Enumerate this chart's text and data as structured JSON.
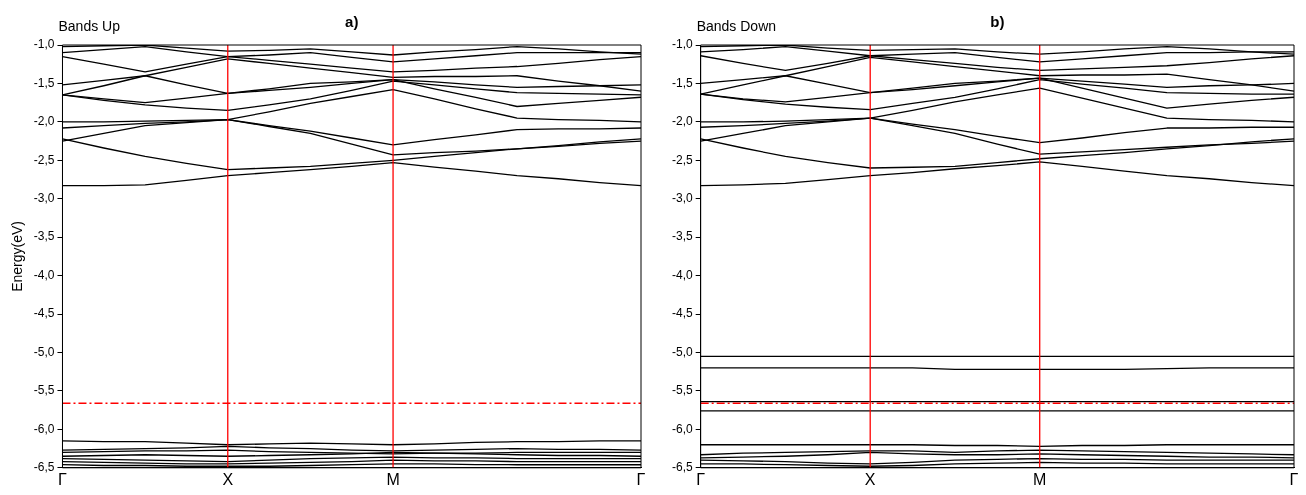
{
  "chart_data": [
    {
      "type": "line",
      "title": "a)",
      "subtitle": "Bands Up",
      "ylabel": "Energy(eV)",
      "categories": [
        "Γ",
        null,
        null,
        null,
        "Χ",
        null,
        null,
        null,
        "M",
        null,
        null,
        null,
        null,
        null,
        "Γ"
      ],
      "ylim": [
        -6.5,
        -1
      ],
      "yticks": [
        {
          "value": -6.5,
          "label": "-6,5"
        },
        {
          "value": -6,
          "label": "-6,0"
        },
        {
          "value": -5.5,
          "label": "-5,5"
        },
        {
          "value": -5,
          "label": "-5,0"
        },
        {
          "value": -4.5,
          "label": "-4,5"
        },
        {
          "value": -4,
          "label": "-4,0"
        },
        {
          "value": -3.5,
          "label": "-3,5"
        },
        {
          "value": -3,
          "label": "-3,0"
        },
        {
          "value": -2.5,
          "label": "-2,5"
        },
        {
          "value": -2,
          "label": "-2,0"
        },
        {
          "value": -1.5,
          "label": "-1,5"
        },
        {
          "value": -1,
          "label": "-1,0"
        }
      ],
      "ref_lines": [
        {
          "axis": "x",
          "value": "Χ",
          "color": "#ff0000",
          "line_style": "solid"
        },
        {
          "axis": "x",
          "value": "M",
          "color": "#ff0000",
          "line_style": "solid"
        },
        {
          "axis": "y",
          "value": -5.66,
          "color": "#ff0000",
          "line_style": "dashed"
        }
      ],
      "series": [
        {
          "color": "#000000",
          "values": [
            -2.83,
            -2.83,
            -2.82,
            -2.76,
            -2.7,
            -2.66,
            -2.62,
            -2.58,
            -2.53,
            -2.59,
            -2.64,
            -2.7,
            -2.74,
            -2.79,
            -2.83
          ]
        },
        {
          "color": "#000000",
          "values": [
            -2.22,
            -2.34,
            -2.45,
            -2.54,
            -2.62,
            -2.6,
            -2.58,
            -2.54,
            -2.5,
            -2.45,
            -2.4,
            -2.35,
            -2.31,
            -2.26,
            -2.22
          ]
        },
        {
          "color": "#000000",
          "values": [
            -2.25,
            -2.15,
            -2.05,
            -2.01,
            -1.97,
            -2.06,
            -2.15,
            -2.29,
            -2.43,
            -2.4,
            -2.38,
            -2.35,
            -2.32,
            -2.28,
            -2.25
          ]
        },
        {
          "color": "#000000",
          "values": [
            -2.08,
            -2.05,
            -2.02,
            -2.0,
            -1.97,
            -2.05,
            -2.12,
            -2.21,
            -2.3,
            -2.23,
            -2.17,
            -2.1,
            -2.09,
            -2.09,
            -2.08
          ]
        },
        {
          "color": "#000000",
          "values": [
            -2.0,
            -2.0,
            -1.99,
            -1.98,
            -1.97,
            -1.87,
            -1.76,
            -1.67,
            -1.58,
            -1.7,
            -1.83,
            -1.95,
            -1.97,
            -1.98,
            -2.0
          ]
        },
        {
          "color": "#000000",
          "values": [
            -1.65,
            -1.72,
            -1.78,
            -1.82,
            -1.85,
            -1.78,
            -1.7,
            -1.59,
            -1.47,
            -1.52,
            -1.57,
            -1.62,
            -1.63,
            -1.64,
            -1.65
          ]
        },
        {
          "color": "#000000",
          "values": [
            -1.65,
            -1.7,
            -1.75,
            -1.69,
            -1.63,
            -1.59,
            -1.55,
            -1.5,
            -1.45,
            -1.57,
            -1.68,
            -1.8,
            -1.76,
            -1.72,
            -1.68
          ]
        },
        {
          "color": "#000000",
          "values": [
            -1.52,
            -1.46,
            -1.4,
            -1.52,
            -1.63,
            -1.57,
            -1.5,
            -1.48,
            -1.45,
            -1.48,
            -1.52,
            -1.55,
            -1.54,
            -1.53,
            -1.52
          ]
        },
        {
          "color": "#000000",
          "values": [
            -1.65,
            -1.53,
            -1.4,
            -1.29,
            -1.18,
            -1.24,
            -1.3,
            -1.36,
            -1.42,
            -1.41,
            -1.41,
            -1.4,
            -1.47,
            -1.53,
            -1.6
          ]
        },
        {
          "color": "#000000",
          "values": [
            -1.15,
            -1.25,
            -1.35,
            -1.25,
            -1.15,
            -1.2,
            -1.25,
            -1.3,
            -1.35,
            -1.33,
            -1.3,
            -1.28,
            -1.24,
            -1.19,
            -1.15
          ]
        },
        {
          "color": "#000000",
          "values": [
            -1.1,
            -1.06,
            -1.02,
            -1.09,
            -1.15,
            -1.13,
            -1.1,
            -1.16,
            -1.22,
            -1.18,
            -1.14,
            -1.1,
            -1.1,
            -1.1,
            -1.1
          ]
        },
        {
          "color": "#000000",
          "values": [
            -1.02,
            -1.01,
            -1.0,
            -1.04,
            -1.08,
            -1.07,
            -1.05,
            -1.09,
            -1.13,
            -1.09,
            -1.06,
            -1.02,
            -1.05,
            -1.09,
            -1.12
          ]
        },
        {
          "color": "#000000",
          "values": [
            -6.15,
            -6.16,
            -6.16,
            -6.18,
            -6.2,
            -6.19,
            -6.18,
            -6.19,
            -6.2,
            -6.19,
            -6.17,
            -6.16,
            -6.16,
            -6.15,
            -6.15
          ]
        },
        {
          "color": "#000000",
          "values": [
            -6.27,
            -6.26,
            -6.25,
            -6.24,
            -6.22,
            -6.24,
            -6.25,
            -6.27,
            -6.28,
            -6.27,
            -6.26,
            -6.25,
            -6.26,
            -6.26,
            -6.27
          ]
        },
        {
          "color": "#000000",
          "values": [
            -6.3,
            -6.29,
            -6.28,
            -6.28,
            -6.27,
            -6.29,
            -6.3,
            -6.31,
            -6.32,
            -6.31,
            -6.31,
            -6.3,
            -6.3,
            -6.3,
            -6.3
          ]
        },
        {
          "color": "#000000",
          "values": [
            -6.35,
            -6.34,
            -6.33,
            -6.34,
            -6.35,
            -6.34,
            -6.33,
            -6.32,
            -6.3,
            -6.31,
            -6.32,
            -6.33,
            -6.34,
            -6.34,
            -6.35
          ]
        },
        {
          "color": "#000000",
          "values": [
            -6.38,
            -6.39,
            -6.4,
            -6.41,
            -6.42,
            -6.4,
            -6.38,
            -6.37,
            -6.36,
            -6.37,
            -6.37,
            -6.38,
            -6.38,
            -6.38,
            -6.38
          ]
        },
        {
          "color": "#000000",
          "values": [
            -6.42,
            -6.43,
            -6.44,
            -6.45,
            -6.45,
            -6.44,
            -6.43,
            -6.42,
            -6.4,
            -6.41,
            -6.41,
            -6.42,
            -6.42,
            -6.42,
            -6.42
          ]
        },
        {
          "color": "#000000",
          "values": [
            -6.46,
            -6.47,
            -6.47,
            -6.48,
            -6.48,
            -6.48,
            -6.47,
            -6.46,
            -6.45,
            -6.45,
            -6.46,
            -6.46,
            -6.46,
            -6.46,
            -6.46
          ]
        }
      ]
    },
    {
      "type": "line",
      "title": "b)",
      "subtitle": "Bands Down",
      "categories": [
        "Γ",
        null,
        null,
        null,
        "X",
        null,
        null,
        null,
        "M",
        null,
        null,
        null,
        null,
        null,
        "Γ"
      ],
      "ylim": [
        -6.5,
        -1
      ],
      "yticks": [
        {
          "value": -6.5,
          "label": "-6,5"
        },
        {
          "value": -6,
          "label": "-6,0"
        },
        {
          "value": -5.5,
          "label": "-5,5"
        },
        {
          "value": -5,
          "label": "-5,0"
        },
        {
          "value": -4.5,
          "label": "-4,5"
        },
        {
          "value": -4,
          "label": "-4,0"
        },
        {
          "value": -3.5,
          "label": "-3,5"
        },
        {
          "value": -3,
          "label": "-3,0"
        },
        {
          "value": -2.5,
          "label": "-2,5"
        },
        {
          "value": -2,
          "label": "-2,0"
        },
        {
          "value": -1.5,
          "label": "-1,5"
        },
        {
          "value": -1,
          "label": "-1,0"
        }
      ],
      "ref_lines": [
        {
          "axis": "x",
          "value": "X",
          "color": "#ff0000",
          "line_style": "solid"
        },
        {
          "axis": "x",
          "value": "M",
          "color": "#ff0000",
          "line_style": "solid"
        },
        {
          "axis": "y",
          "value": -5.66,
          "color": "#ff0000",
          "line_style": "dashed"
        }
      ],
      "series": [
        {
          "color": "#000000",
          "values": [
            -2.83,
            -2.82,
            -2.8,
            -2.75,
            -2.7,
            -2.66,
            -2.61,
            -2.57,
            -2.52,
            -2.58,
            -2.64,
            -2.7,
            -2.74,
            -2.79,
            -2.83
          ]
        },
        {
          "color": "#000000",
          "values": [
            -2.22,
            -2.34,
            -2.45,
            -2.53,
            -2.6,
            -2.59,
            -2.58,
            -2.53,
            -2.48,
            -2.44,
            -2.4,
            -2.35,
            -2.31,
            -2.26,
            -2.22
          ]
        },
        {
          "color": "#000000",
          "values": [
            -2.25,
            -2.15,
            -2.05,
            -2.0,
            -1.95,
            -2.05,
            -2.15,
            -2.29,
            -2.42,
            -2.39,
            -2.36,
            -2.33,
            -2.3,
            -2.28,
            -2.25
          ]
        },
        {
          "color": "#000000",
          "values": [
            -2.07,
            -2.05,
            -2.02,
            -1.99,
            -1.95,
            -2.03,
            -2.1,
            -2.19,
            -2.27,
            -2.21,
            -2.14,
            -2.08,
            -2.08,
            -2.07,
            -2.07
          ]
        },
        {
          "color": "#000000",
          "values": [
            -2.0,
            -2.0,
            -1.99,
            -1.97,
            -1.95,
            -1.85,
            -1.74,
            -1.65,
            -1.56,
            -1.69,
            -1.82,
            -1.95,
            -1.97,
            -1.98,
            -2.0
          ]
        },
        {
          "color": "#000000",
          "values": [
            -1.64,
            -1.71,
            -1.77,
            -1.81,
            -1.84,
            -1.76,
            -1.68,
            -1.57,
            -1.45,
            -1.51,
            -1.56,
            -1.62,
            -1.63,
            -1.64,
            -1.64
          ]
        },
        {
          "color": "#000000",
          "values": [
            -1.64,
            -1.7,
            -1.74,
            -1.68,
            -1.62,
            -1.58,
            -1.53,
            -1.48,
            -1.43,
            -1.56,
            -1.69,
            -1.82,
            -1.77,
            -1.72,
            -1.68
          ]
        },
        {
          "color": "#000000",
          "values": [
            -1.5,
            -1.45,
            -1.4,
            -1.51,
            -1.62,
            -1.56,
            -1.5,
            -1.47,
            -1.43,
            -1.47,
            -1.51,
            -1.55,
            -1.53,
            -1.52,
            -1.5
          ]
        },
        {
          "color": "#000000",
          "values": [
            -1.64,
            -1.52,
            -1.4,
            -1.28,
            -1.16,
            -1.22,
            -1.28,
            -1.34,
            -1.4,
            -1.39,
            -1.39,
            -1.38,
            -1.45,
            -1.52,
            -1.6
          ]
        },
        {
          "color": "#000000",
          "values": [
            -1.14,
            -1.24,
            -1.33,
            -1.24,
            -1.14,
            -1.19,
            -1.24,
            -1.29,
            -1.33,
            -1.31,
            -1.29,
            -1.27,
            -1.23,
            -1.18,
            -1.14
          ]
        },
        {
          "color": "#000000",
          "values": [
            -1.09,
            -1.06,
            -1.02,
            -1.08,
            -1.14,
            -1.12,
            -1.1,
            -1.16,
            -1.22,
            -1.18,
            -1.14,
            -1.1,
            -1.1,
            -1.09,
            -1.09
          ]
        },
        {
          "color": "#000000",
          "values": [
            -1.02,
            -1.01,
            -1.0,
            -1.04,
            -1.07,
            -1.06,
            -1.05,
            -1.09,
            -1.12,
            -1.09,
            -1.05,
            -1.02,
            -1.05,
            -1.09,
            -1.12
          ]
        },
        {
          "color": "#000000",
          "values": [
            -5.05,
            -5.05,
            -5.05,
            -5.05,
            -5.05,
            -5.05,
            -5.05,
            -5.05,
            -5.05,
            -5.05,
            -5.05,
            -5.05,
            -5.05,
            -5.05,
            -5.05
          ]
        },
        {
          "color": "#000000",
          "values": [
            -5.2,
            -5.2,
            -5.2,
            -5.2,
            -5.2,
            -5.2,
            -5.22,
            -5.22,
            -5.22,
            -5.22,
            -5.22,
            -5.21,
            -5.2,
            -5.2,
            -5.2
          ]
        },
        {
          "color": "#000000",
          "values": [
            -5.64,
            -5.64,
            -5.64,
            -5.64,
            -5.64,
            -5.64,
            -5.64,
            -5.64,
            -5.64,
            -5.64,
            -5.64,
            -5.64,
            -5.64,
            -5.64,
            -5.64
          ]
        },
        {
          "color": "#000000",
          "values": [
            -5.76,
            -5.76,
            -5.76,
            -5.76,
            -5.76,
            -5.76,
            -5.76,
            -5.76,
            -5.76,
            -5.76,
            -5.76,
            -5.76,
            -5.76,
            -5.76,
            -5.76
          ]
        },
        {
          "color": "#000000",
          "values": [
            -6.2,
            -6.2,
            -6.2,
            -6.2,
            -6.2,
            -6.2,
            -6.21,
            -6.21,
            -6.22,
            -6.21,
            -6.21,
            -6.2,
            -6.2,
            -6.2,
            -6.2
          ]
        },
        {
          "color": "#000000",
          "values": [
            -6.33,
            -6.31,
            -6.3,
            -6.29,
            -6.28,
            -6.28,
            -6.3,
            -6.28,
            -6.27,
            -6.28,
            -6.29,
            -6.3,
            -6.31,
            -6.32,
            -6.33
          ]
        },
        {
          "color": "#000000",
          "values": [
            -6.37,
            -6.36,
            -6.35,
            -6.33,
            -6.3,
            -6.32,
            -6.33,
            -6.33,
            -6.32,
            -6.33,
            -6.34,
            -6.35,
            -6.36,
            -6.36,
            -6.37
          ]
        },
        {
          "color": "#000000",
          "values": [
            -6.4,
            -6.41,
            -6.42,
            -6.44,
            -6.45,
            -6.43,
            -6.4,
            -6.39,
            -6.38,
            -6.39,
            -6.39,
            -6.4,
            -6.4,
            -6.4,
            -6.4
          ]
        },
        {
          "color": "#000000",
          "values": [
            -6.45,
            -6.45,
            -6.46,
            -6.47,
            -6.48,
            -6.47,
            -6.45,
            -6.44,
            -6.43,
            -6.44,
            -6.44,
            -6.45,
            -6.45,
            -6.45,
            -6.45
          ]
        }
      ]
    }
  ]
}
